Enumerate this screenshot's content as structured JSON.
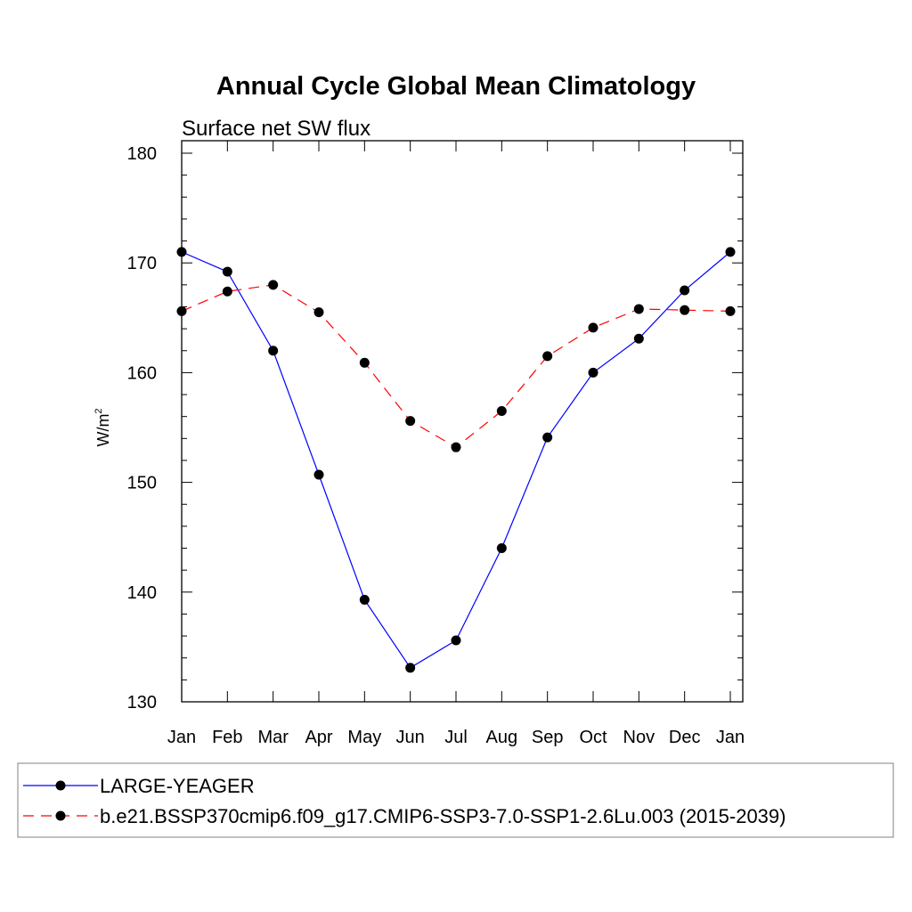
{
  "chart_data": {
    "type": "line",
    "title": "Annual Cycle Global Mean Climatology",
    "subtitle": "Surface net SW flux",
    "ylabel": "W/m",
    "ylabel_sup": "2",
    "ylim": [
      130,
      180
    ],
    "yticks": [
      130,
      140,
      150,
      160,
      170,
      180
    ],
    "categories": [
      "Jan",
      "Feb",
      "Mar",
      "Apr",
      "May",
      "Jun",
      "Jul",
      "Aug",
      "Sep",
      "Oct",
      "Nov",
      "Dec",
      "Jan"
    ],
    "grid": false,
    "legend_placement": "bottom",
    "series": [
      {
        "name": "LARGE-YEAGER",
        "color": "#0000ff",
        "dash": "solid",
        "marker": "circle",
        "values": [
          171.0,
          169.2,
          162.0,
          150.7,
          139.3,
          133.1,
          135.6,
          144.0,
          154.1,
          160.0,
          163.1,
          167.5,
          171.0
        ]
      },
      {
        "name": "b.e21.BSSP370cmip6.f09_g17.CMIP6-SSP3-7.0-SSP1-2.6Lu.003 (2015-2039)",
        "color": "#ff0000",
        "dash": "dashed",
        "marker": "circle",
        "values": [
          165.6,
          167.4,
          168.0,
          165.5,
          160.9,
          155.6,
          153.2,
          156.5,
          161.5,
          164.1,
          165.8,
          165.7,
          165.6
        ]
      }
    ]
  }
}
